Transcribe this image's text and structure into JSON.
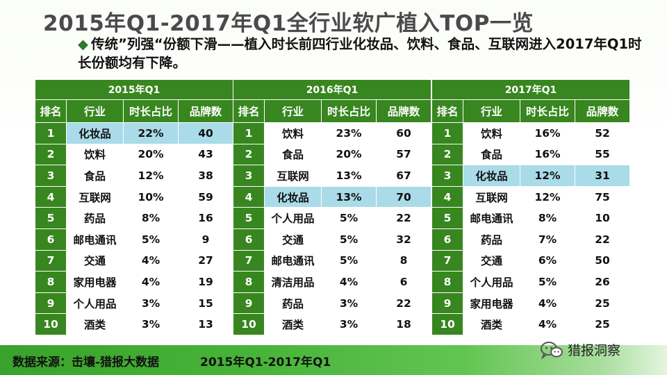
{
  "title": "2015年Q1-2017年Q1全行业软广植入TOP一览",
  "subtitle": {
    "bullet": "◆",
    "text": "传统”列强“份额下滑——植入时长前四行业化妆品、饮料、食品、互联网进入2017年Q1时长份额均有下降。"
  },
  "colors": {
    "green": "#38861f",
    "highlight": "#a9dbe8"
  },
  "tables": [
    {
      "year": "2015年Q1",
      "headers": [
        "排名",
        "行业",
        "时长占比",
        "品牌数"
      ],
      "rows": [
        {
          "rank": "1",
          "industry": "化妆品",
          "share": "22%",
          "brands": "40",
          "highlight": true
        },
        {
          "rank": "2",
          "industry": "饮料",
          "share": "20%",
          "brands": "43",
          "highlight": false
        },
        {
          "rank": "3",
          "industry": "食品",
          "share": "12%",
          "brands": "38",
          "highlight": false
        },
        {
          "rank": "4",
          "industry": "互联网",
          "share": "10%",
          "brands": "59",
          "highlight": false
        },
        {
          "rank": "5",
          "industry": "药品",
          "share": "8%",
          "brands": "16",
          "highlight": false
        },
        {
          "rank": "6",
          "industry": "邮电通讯",
          "share": "5%",
          "brands": "9",
          "highlight": false
        },
        {
          "rank": "7",
          "industry": "交通",
          "share": "4%",
          "brands": "27",
          "highlight": false
        },
        {
          "rank": "8",
          "industry": "家用电器",
          "share": "4%",
          "brands": "19",
          "highlight": false
        },
        {
          "rank": "9",
          "industry": "个人用品",
          "share": "3%",
          "brands": "15",
          "highlight": false
        },
        {
          "rank": "10",
          "industry": "酒类",
          "share": "3%",
          "brands": "13",
          "highlight": false
        }
      ]
    },
    {
      "year": "2016年Q1",
      "headers": [
        "排名",
        "行业",
        "时长占比",
        "品牌数"
      ],
      "rows": [
        {
          "rank": "1",
          "industry": "饮料",
          "share": "23%",
          "brands": "60",
          "highlight": false
        },
        {
          "rank": "2",
          "industry": "食品",
          "share": "20%",
          "brands": "57",
          "highlight": false
        },
        {
          "rank": "3",
          "industry": "互联网",
          "share": "13%",
          "brands": "67",
          "highlight": false
        },
        {
          "rank": "4",
          "industry": "化妆品",
          "share": "13%",
          "brands": "70",
          "highlight": true
        },
        {
          "rank": "5",
          "industry": "个人用品",
          "share": "5%",
          "brands": "22",
          "highlight": false
        },
        {
          "rank": "6",
          "industry": "交通",
          "share": "5%",
          "brands": "32",
          "highlight": false
        },
        {
          "rank": "7",
          "industry": "邮电通讯",
          "share": "5%",
          "brands": "8",
          "highlight": false
        },
        {
          "rank": "8",
          "industry": "清洁用品",
          "share": "4%",
          "brands": "6",
          "highlight": false
        },
        {
          "rank": "9",
          "industry": "药品",
          "share": "3%",
          "brands": "22",
          "highlight": false
        },
        {
          "rank": "10",
          "industry": "酒类",
          "share": "3%",
          "brands": "18",
          "highlight": false
        }
      ]
    },
    {
      "year": "2017年Q1",
      "headers": [
        "排名",
        "行业",
        "时长占比",
        "品牌数"
      ],
      "rows": [
        {
          "rank": "1",
          "industry": "饮料",
          "share": "16%",
          "brands": "52",
          "highlight": false
        },
        {
          "rank": "2",
          "industry": "食品",
          "share": "16%",
          "brands": "55",
          "highlight": false
        },
        {
          "rank": "3",
          "industry": "化妆品",
          "share": "12%",
          "brands": "31",
          "highlight": true
        },
        {
          "rank": "4",
          "industry": "互联网",
          "share": "12%",
          "brands": "75",
          "highlight": false
        },
        {
          "rank": "5",
          "industry": "邮电通讯",
          "share": "8%",
          "brands": "10",
          "highlight": false
        },
        {
          "rank": "6",
          "industry": "药品",
          "share": "7%",
          "brands": "22",
          "highlight": false
        },
        {
          "rank": "7",
          "industry": "交通",
          "share": "6%",
          "brands": "50",
          "highlight": false
        },
        {
          "rank": "8",
          "industry": "个人用品",
          "share": "5%",
          "brands": "26",
          "highlight": false
        },
        {
          "rank": "9",
          "industry": "家用电器",
          "share": "4%",
          "brands": "25",
          "highlight": false
        },
        {
          "rank": "10",
          "industry": "酒类",
          "share": "4%",
          "brands": "25",
          "highlight": false
        }
      ]
    }
  ],
  "footer": {
    "source": "数据来源：击壤-猎报大数据",
    "period": "2015年Q1-2017年Q1"
  },
  "brand": {
    "icon": "wechat-icon",
    "name": "猎报洞察"
  }
}
